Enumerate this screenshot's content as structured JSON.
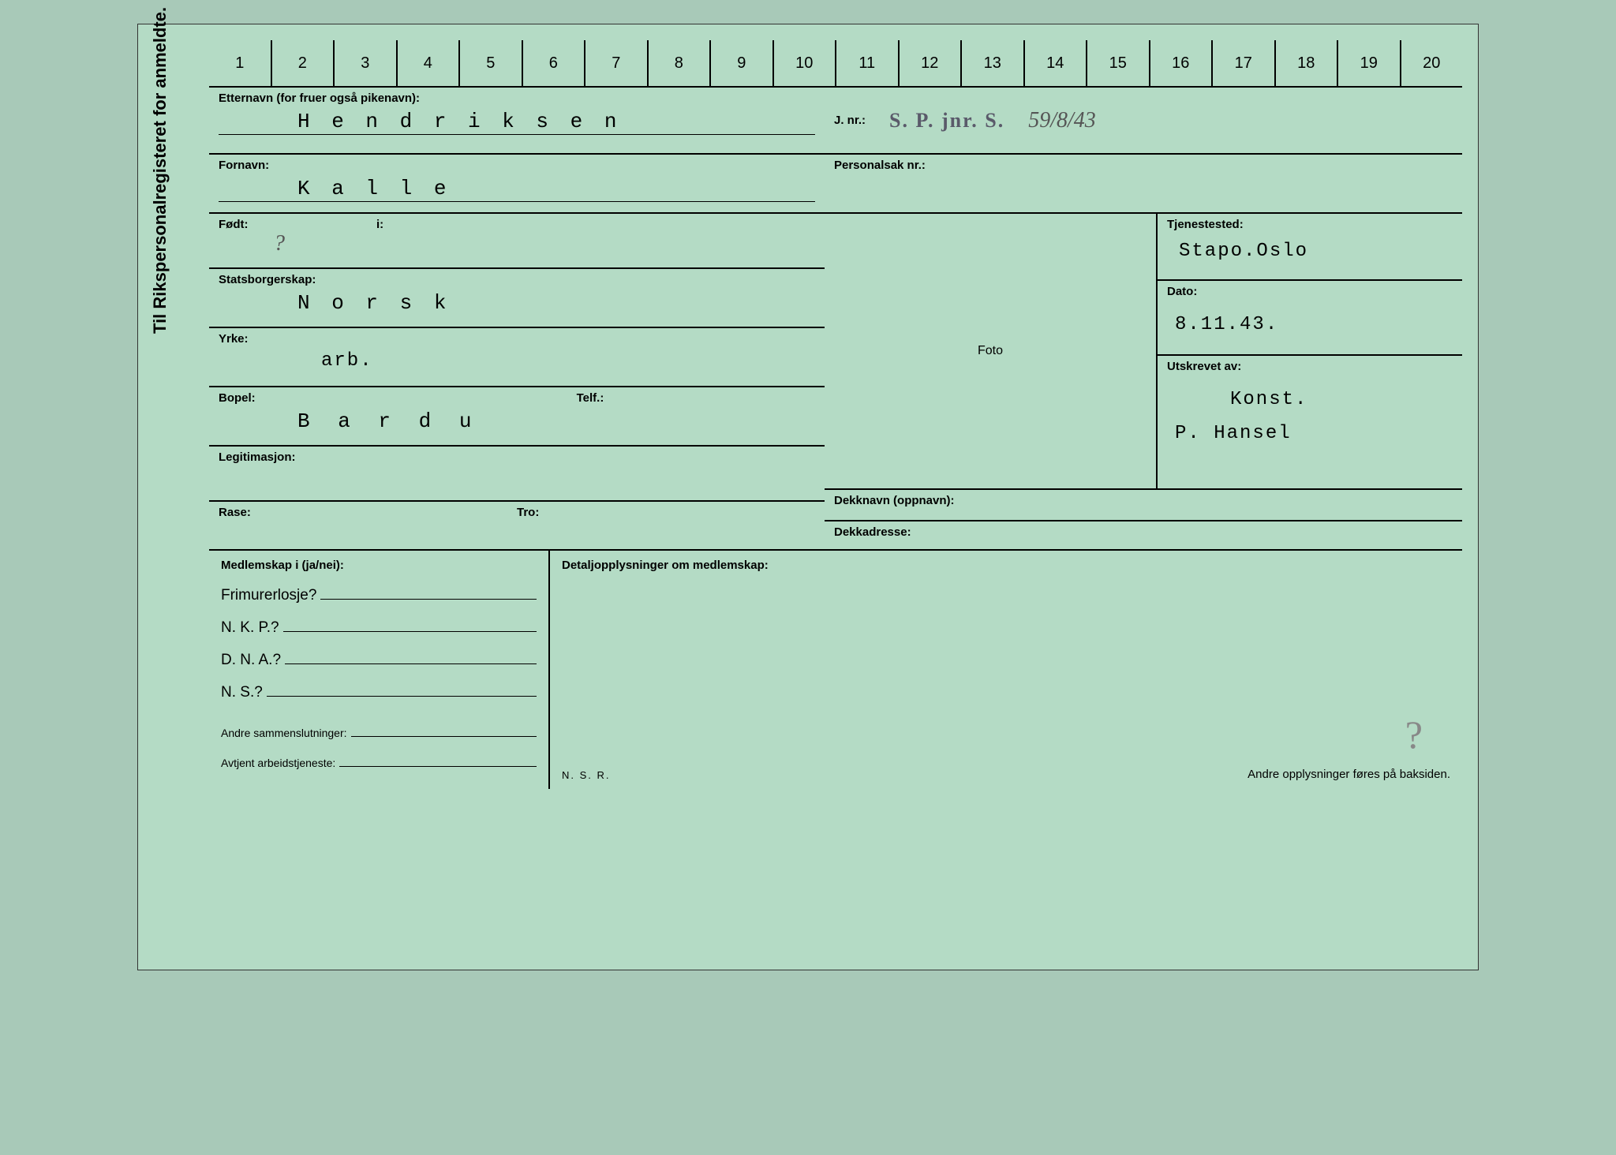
{
  "vertical_title": "Til Rikspersonalregisteret for anmeldte.",
  "numbers": [
    "1",
    "2",
    "3",
    "4",
    "5",
    "6",
    "7",
    "8",
    "9",
    "10",
    "11",
    "12",
    "13",
    "14",
    "15",
    "16",
    "17",
    "18",
    "19",
    "20"
  ],
  "left": {
    "etternavn_label": "Etternavn (for fruer også pikenavn):",
    "etternavn_value": "H e n d r i k s e n",
    "fornavn_label": "Fornavn:",
    "fornavn_value": "K a l l e",
    "fodt_label": "Født:",
    "fodt_value": "?",
    "fodt_i_label": "i:",
    "fodt_i_value": "",
    "statsborger_label": "Statsborgerskap:",
    "statsborger_value": "N o r s k",
    "yrke_label": "Yrke:",
    "yrke_value": "arb.",
    "bopel_label": "Bopel:",
    "bopel_value": "B a r d u",
    "telf_label": "Telf.:",
    "telf_value": "",
    "legitimasjon_label": "Legitimasjon:",
    "legitimasjon_value": "",
    "rase_label": "Rase:",
    "rase_value": "",
    "tro_label": "Tro:",
    "tro_value": ""
  },
  "mid": {
    "jnr_label": "J. nr.:",
    "jnr_stamp": "S. P. jnr. S.",
    "jnr_value": "59/8/43",
    "personalsak_label": "Personalsak nr.:",
    "foto_label": "Foto",
    "dekknavn_label": "Dekknavn (oppnavn):",
    "dekkadresse_label": "Dekkadresse:"
  },
  "right": {
    "tjenestested_label": "Tjenestested:",
    "tjenestested_value": "Stapo.Oslo",
    "dato_label": "Dato:",
    "dato_value": "8.11.43.",
    "utskrevet_label": "Utskrevet av:",
    "utskrevet_value1": "Konst.",
    "utskrevet_value2": "P.  Hansel"
  },
  "membership": {
    "header_label": "Medlemskap i (ja/nei):",
    "frimurer_label": "Frimurerlosje?",
    "nkp_label": "N. K. P.?",
    "dna_label": "D. N. A.?",
    "ns_label": "N. S.?",
    "andre_label": "Andre sammenslutninger:",
    "avtjent_label": "Avtjent arbeidstjeneste:",
    "detalj_label": "Detaljopplysninger om medlemskap:",
    "nsr": "N. S. R.",
    "footer": "Andre opplysninger føres på baksiden."
  },
  "colors": {
    "card_bg": "#b4dbc5",
    "line": "#000000",
    "typed": "#333333"
  }
}
